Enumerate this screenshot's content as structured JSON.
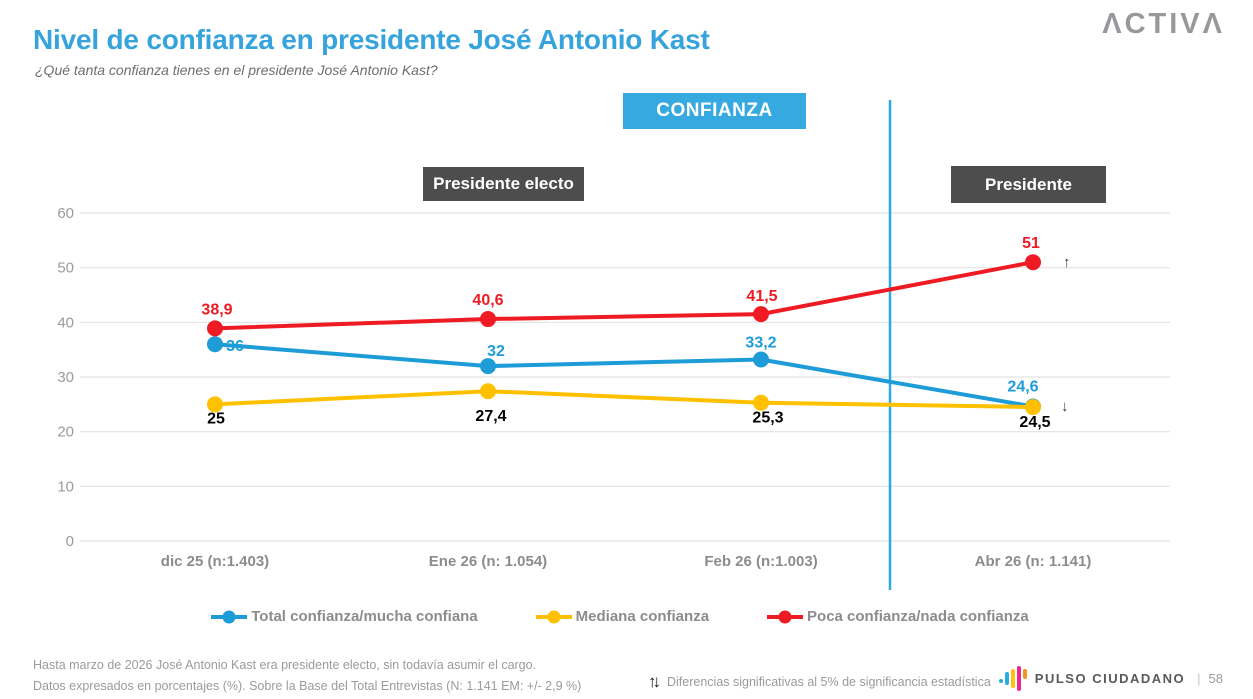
{
  "header": {
    "title": "Nivel de confianza en presidente José Antonio Kast",
    "subtitle": "¿Qué tanta confianza tienes en el presidente José Antonio Kast?",
    "logo_text": "ΛCTIVΛ"
  },
  "annotations": {
    "confianza_badge": "CONFIANZA",
    "period_left_badge": "Presidente electo",
    "period_right_badge": "Presidente",
    "up_arrow": "↑",
    "down_arrow": "↓"
  },
  "colors": {
    "title_blue": "#36A3DC",
    "confianza_badge_blue": "#36A9E1",
    "separator_line_blue": "#29ABE2",
    "period_badge_gray": "#4D4D4D",
    "series_total_blue": "#1E9CD7",
    "series_mediana_yellow": "#FFC000",
    "series_poca_red": "#EE1B24",
    "gridline_gray": "#E2E2E2",
    "tick_label_gray": "#9B9B9B",
    "axis_label_gray": "#8C8C8C"
  },
  "chart_data": {
    "type": "line",
    "title": "Nivel de confianza en presidente José Antonio Kast",
    "categories": [
      "dic 25 (n:1.403)",
      "Ene 26 (n: 1.054)",
      "Feb 26 (n:1.003)",
      "Abr 26 (n: 1.141)"
    ],
    "xlabel": "",
    "ylabel": "",
    "ylim": [
      0,
      60
    ],
    "yticks": [
      0,
      10,
      20,
      30,
      40,
      50,
      60
    ],
    "grid": true,
    "legend_position": "bottom",
    "separator_after_category_index": 2,
    "series": [
      {
        "name": "Total confianza/mucha confiana",
        "color": "#1E9CD7",
        "values": [
          36,
          32,
          33.2,
          24.6
        ],
        "labels": [
          "36",
          "32",
          "33,2",
          "24,6"
        ],
        "label_offsets": [
          [
            20,
            7
          ],
          [
            8,
            -10
          ],
          [
            0,
            -12
          ],
          [
            -10,
            -15
          ]
        ]
      },
      {
        "name": "Mediana confianza",
        "color": "#FFC000",
        "label_color": "#000000",
        "values": [
          25,
          27.4,
          25.3,
          24.5
        ],
        "labels": [
          "25",
          "27,4",
          "25,3",
          "24,5"
        ],
        "label_offsets": [
          [
            1,
            19
          ],
          [
            3,
            30
          ],
          [
            7,
            20
          ],
          [
            2,
            20
          ]
        ]
      },
      {
        "name": "Poca confianza/nada confianza",
        "color": "#EE1B24",
        "values": [
          38.9,
          40.6,
          41.5,
          51
        ],
        "labels": [
          "38,9",
          "40,6",
          "41,5",
          "51"
        ],
        "label_offsets": [
          [
            2,
            -14
          ],
          [
            0,
            -14
          ],
          [
            1,
            -13
          ],
          [
            -2,
            -14
          ]
        ]
      }
    ],
    "trend_arrows": [
      {
        "symbol": "↑",
        "series_index": 2,
        "dx": 30,
        "dy": 5
      },
      {
        "symbol": "↓",
        "series_index": 1,
        "dx": 28,
        "dy": 4
      }
    ]
  },
  "footer": {
    "note_line1": "Hasta marzo de 2026 José Antonio Kast era presidente electo, sin todavía asumir el cargo.",
    "note_line2": "Datos expresados en porcentajes (%). Sobre la Base del Total Entrevistas (N: 1.141  EM: +/- 2,9 %)",
    "significance_note": "Diferencias  significativas  al 5% de significancia estadística",
    "brand": "PULSO CIUDADANO",
    "divider": "|",
    "page_number": "58"
  }
}
